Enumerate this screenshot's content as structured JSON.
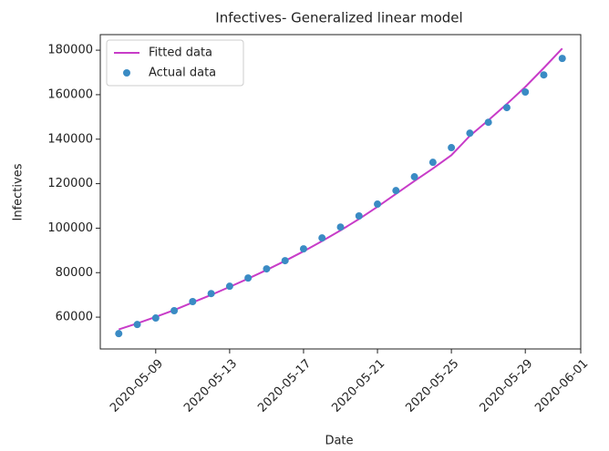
{
  "chart_data": {
    "type": "line_scatter",
    "title": "Infectives- Generalized linear model",
    "xlabel": "Date",
    "ylabel": "Infectives",
    "x": [
      "2020-05-07",
      "2020-05-08",
      "2020-05-09",
      "2020-05-10",
      "2020-05-11",
      "2020-05-12",
      "2020-05-13",
      "2020-05-14",
      "2020-05-15",
      "2020-05-16",
      "2020-05-17",
      "2020-05-18",
      "2020-05-19",
      "2020-05-20",
      "2020-05-21",
      "2020-05-22",
      "2020-05-23",
      "2020-05-24",
      "2020-05-25",
      "2020-05-26",
      "2020-05-27",
      "2020-05-28",
      "2020-05-29",
      "2020-05-30",
      "2020-05-31"
    ],
    "series": [
      {
        "name": "Fitted data",
        "kind": "line",
        "color": "#c83cc8",
        "values": [
          54500,
          57200,
          60100,
          63200,
          66600,
          70000,
          73600,
          77300,
          81200,
          85300,
          89600,
          94200,
          99000,
          104100,
          109600,
          115400,
          121200,
          126800,
          132800,
          141500,
          148500,
          155800,
          163500,
          172000,
          180800
        ]
      },
      {
        "name": "Actual data",
        "kind": "scatter",
        "color": "#3a8bc4",
        "values": [
          52600,
          56700,
          59600,
          62900,
          67000,
          70600,
          73900,
          77600,
          81700,
          85400,
          90700,
          95600,
          100500,
          105500,
          110800,
          116900,
          123100,
          129600,
          136200,
          142700,
          147600,
          154200,
          161200,
          168900,
          176300
        ]
      }
    ],
    "xlim": [
      "2020-05-06",
      "2020-06-01"
    ],
    "xticks": [
      "2020-05-09",
      "2020-05-13",
      "2020-05-17",
      "2020-05-21",
      "2020-05-25",
      "2020-05-29",
      "2020-06-01"
    ],
    "ylim": [
      45700,
      187000
    ],
    "yticks": [
      60000,
      80000,
      100000,
      120000,
      140000,
      160000,
      180000
    ],
    "legend": "upper left"
  }
}
